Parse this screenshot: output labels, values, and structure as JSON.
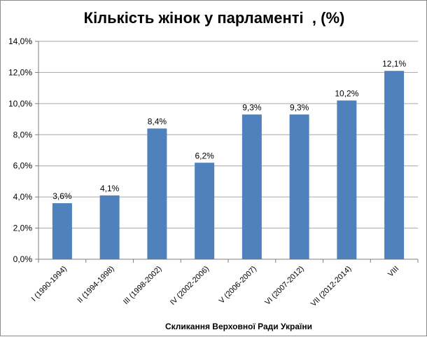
{
  "chart_data": {
    "type": "bar",
    "title": "Кількість жінок у парламенті  , (%)",
    "xlabel": "Скликання Верховної Ради України",
    "ylabel": "",
    "categories": [
      "I (1990-1994)",
      "II (1994-1998)",
      "III (1998-2002)",
      "IV (2002-2006)",
      "V (2006-2007)",
      "VI (2007-2012)",
      "VII (2012-2014)",
      "VIII"
    ],
    "values": [
      3.6,
      4.1,
      8.4,
      6.2,
      9.3,
      9.3,
      10.2,
      12.1
    ],
    "value_labels": [
      "3,6%",
      "4,1%",
      "8,4%",
      "6,2%",
      "9,3%",
      "9,3%",
      "10,2%",
      "12,1%"
    ],
    "ylim": [
      0,
      14
    ],
    "yticks": [
      0,
      2,
      4,
      6,
      8,
      10,
      12,
      14
    ],
    "ytick_labels": [
      "0,0%",
      "2,0%",
      "4,0%",
      "6,0%",
      "8,0%",
      "10,0%",
      "12,0%",
      "14,0%"
    ],
    "grid": true,
    "legend": "none",
    "bar_color": "#4f81bd",
    "grid_color": "#a6a6a6"
  }
}
